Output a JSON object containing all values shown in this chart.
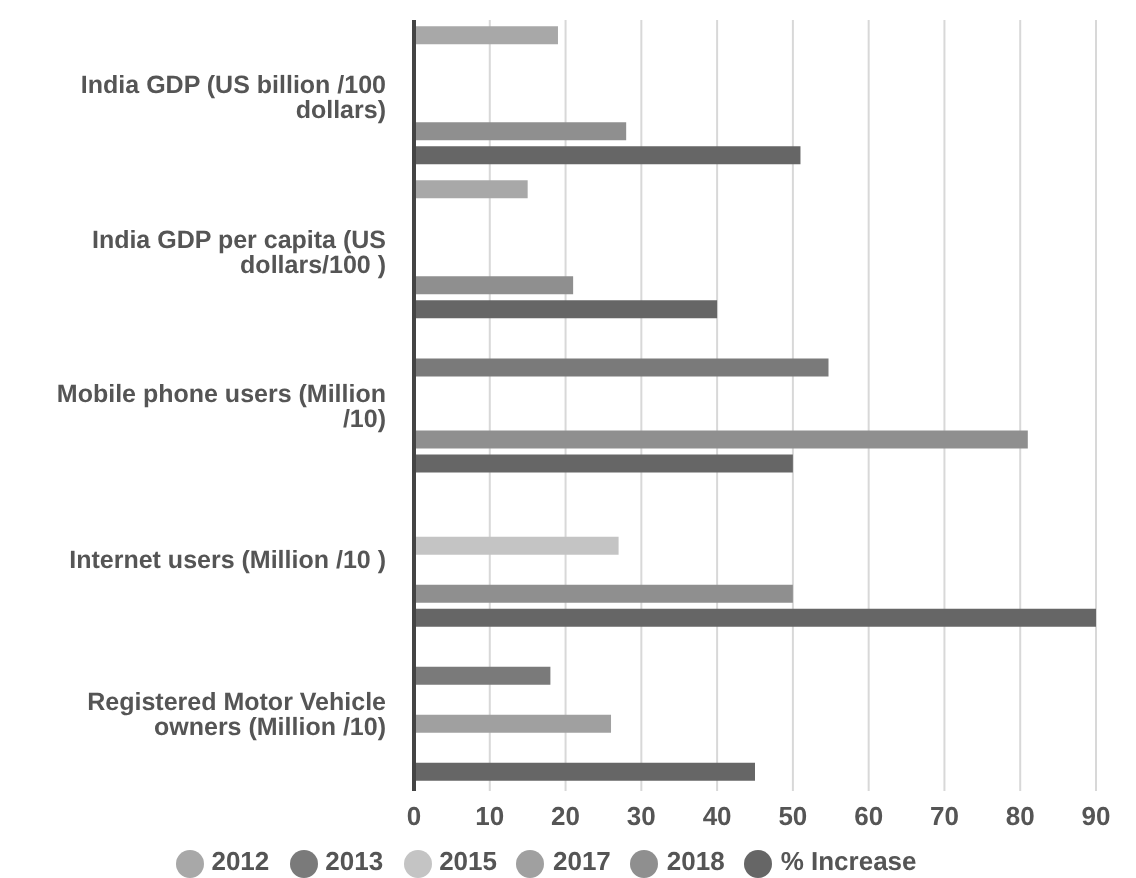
{
  "chart_data": {
    "type": "bar",
    "orientation": "horizontal",
    "categories": [
      "India GDP (US billion /100 dollars)",
      "India GDP per capita (US dollars/100 )",
      "Mobile phone users (Million /10)",
      "Internet users (Million /10 )",
      "Registered Motor Vehicle owners (Million /10)"
    ],
    "series": [
      {
        "name": "2012",
        "color": "#a8a8a8",
        "values": [
          19,
          15,
          null,
          null,
          null
        ]
      },
      {
        "name": "2013",
        "color": "#7a7a7a",
        "values": [
          null,
          null,
          54.7,
          null,
          18
        ]
      },
      {
        "name": "2015",
        "color": "#c4c4c4",
        "values": [
          null,
          null,
          null,
          27,
          null
        ]
      },
      {
        "name": "2017",
        "color": "#a0a0a0",
        "values": [
          null,
          null,
          null,
          null,
          26
        ]
      },
      {
        "name": "2018",
        "color": "#8f8f8f",
        "values": [
          28,
          21,
          81,
          50,
          null
        ]
      },
      {
        "name": "% Increase",
        "color": "#666666",
        "values": [
          51,
          40,
          50,
          90,
          45
        ]
      }
    ],
    "xlim": [
      0,
      90
    ],
    "xticks": [
      0,
      10,
      20,
      30,
      40,
      50,
      60,
      70,
      80,
      90
    ],
    "grid": "x",
    "legend": "bottom"
  }
}
